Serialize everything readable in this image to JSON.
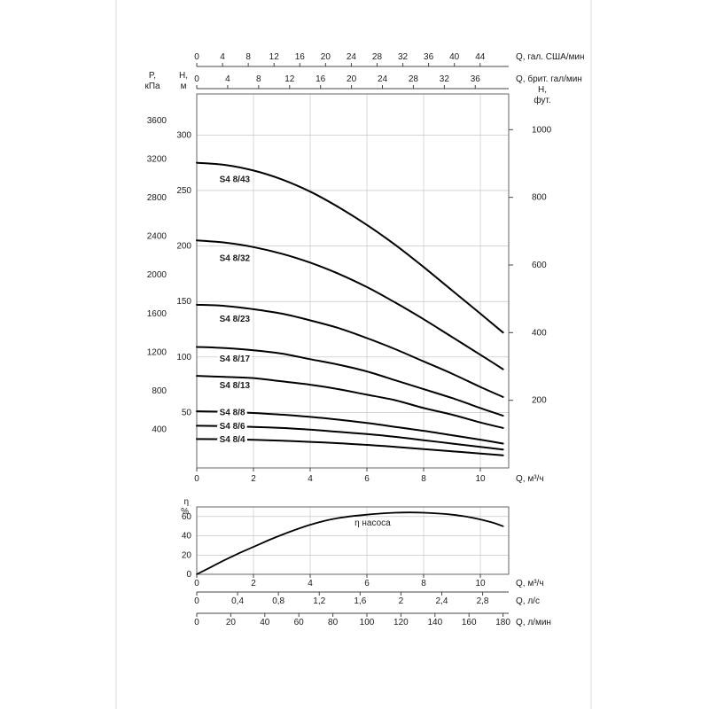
{
  "labels": {
    "p_kpa_1": "P,",
    "p_kpa_2": "кПа",
    "h_m_1": "H,",
    "h_m_2": "м",
    "h_ft_1": "H,",
    "h_ft_2": "фут.",
    "q_usgal": "Q, гал. США/мин",
    "q_ukgal": "Q, брит. гал/мин",
    "q_m3h": "Q, м³/ч",
    "q_ls": "Q, л/с",
    "q_lmin": "Q, л/мин",
    "eta_1": "η",
    "eta_2": "%",
    "eta_curve": "η насоса"
  },
  "chart_data": [
    {
      "type": "line",
      "name": "pump-head-curves",
      "x_axis": {
        "unit": "м³/ч",
        "min": 0,
        "max": 11,
        "ticks": [
          0,
          2,
          4,
          6,
          8,
          10
        ]
      },
      "y_axis_m": {
        "unit": "м",
        "min": 0,
        "max": 337,
        "ticks": [
          50,
          100,
          150,
          200,
          250,
          300
        ]
      },
      "y_axis_kpa": {
        "unit": "кПа",
        "ticks": [
          400,
          800,
          1200,
          1600,
          2000,
          2400,
          2800,
          3200,
          3600
        ]
      },
      "y_axis_ft": {
        "unit": "фут.",
        "ticks": [
          200,
          400,
          600,
          800,
          1000
        ],
        "m_per_ft": 0.3048
      },
      "top_axis_usgal": {
        "unit": "гал. США/мин",
        "ticks": [
          0,
          4,
          8,
          12,
          16,
          20,
          24,
          28,
          32,
          36,
          40,
          44
        ],
        "m3h_per_unit": 0.2271
      },
      "top_axis_ukgal": {
        "unit": "брит. гал/мин",
        "ticks": [
          0,
          4,
          8,
          12,
          16,
          20,
          24,
          28,
          32,
          36
        ],
        "m3h_per_unit": 0.2728
      },
      "series": [
        {
          "name": "S4 8/43",
          "label_dy": 16,
          "points": [
            [
              0,
              275
            ],
            [
              1,
              273
            ],
            [
              2,
              268
            ],
            [
              3,
              260
            ],
            [
              4,
              249
            ],
            [
              5,
              235
            ],
            [
              6,
              219
            ],
            [
              7,
              201
            ],
            [
              8,
              181
            ],
            [
              9,
              160
            ],
            [
              10,
              139
            ],
            [
              10.8,
              122
            ]
          ]
        },
        {
          "name": "S4 8/32",
          "label_dy": 18,
          "points": [
            [
              0,
              205
            ],
            [
              1,
              203
            ],
            [
              2,
              199
            ],
            [
              3,
              193
            ],
            [
              4,
              185
            ],
            [
              5,
              175
            ],
            [
              6,
              163
            ],
            [
              7,
              149
            ],
            [
              8,
              134
            ],
            [
              9,
              118
            ],
            [
              10,
              102
            ],
            [
              10.8,
              89
            ]
          ]
        },
        {
          "name": "S4 8/23",
          "label_dy": 16,
          "points": [
            [
              0,
              147
            ],
            [
              1,
              146
            ],
            [
              2,
              143
            ],
            [
              3,
              139
            ],
            [
              4,
              133
            ],
            [
              5,
              126
            ],
            [
              6,
              117
            ],
            [
              7,
              107
            ],
            [
              8,
              96
            ],
            [
              9,
              85
            ],
            [
              10,
              73
            ],
            [
              10.8,
              64
            ]
          ]
        },
        {
          "name": "S4 8/17",
          "label_dy": 14,
          "points": [
            [
              0,
              109
            ],
            [
              1,
              108
            ],
            [
              2,
              106
            ],
            [
              3,
              103
            ],
            [
              4,
              98
            ],
            [
              5,
              93
            ],
            [
              6,
              87
            ],
            [
              7,
              79
            ],
            [
              8,
              71
            ],
            [
              9,
              63
            ],
            [
              10,
              54
            ],
            [
              10.8,
              47
            ]
          ]
        },
        {
          "name": "S4 8/13",
          "label_dy": 12,
          "points": [
            [
              0,
              83
            ],
            [
              1,
              82
            ],
            [
              2,
              81
            ],
            [
              3,
              78
            ],
            [
              4,
              75
            ],
            [
              5,
              71
            ],
            [
              6,
              66
            ],
            [
              7,
              61
            ],
            [
              8,
              54
            ],
            [
              9,
              48
            ],
            [
              10,
              41
            ],
            [
              10.8,
              36
            ]
          ]
        },
        {
          "name": "S4 8/8",
          "label_dy": 3,
          "points": [
            [
              0,
              51
            ],
            [
              1,
              50.5
            ],
            [
              2,
              49.5
            ],
            [
              3,
              48
            ],
            [
              4,
              46
            ],
            [
              5,
              43.5
            ],
            [
              6,
              40.5
            ],
            [
              7,
              37
            ],
            [
              8,
              33.5
            ],
            [
              9,
              29.5
            ],
            [
              10,
              25.5
            ],
            [
              10.8,
              22
            ]
          ]
        },
        {
          "name": "S4 8/6",
          "label_dy": 3,
          "points": [
            [
              0,
              38
            ],
            [
              1,
              37.7
            ],
            [
              2,
              37
            ],
            [
              3,
              36
            ],
            [
              4,
              34.5
            ],
            [
              5,
              32.5
            ],
            [
              6,
              30.5
            ],
            [
              7,
              28
            ],
            [
              8,
              25
            ],
            [
              9,
              22
            ],
            [
              10,
              19
            ],
            [
              10.8,
              16.5
            ]
          ]
        },
        {
          "name": "S4 8/4",
          "label_dy": 3,
          "points": [
            [
              0,
              26
            ],
            [
              1,
              25.8
            ],
            [
              2,
              25.3
            ],
            [
              3,
              24.5
            ],
            [
              4,
              23.5
            ],
            [
              5,
              22.3
            ],
            [
              6,
              20.8
            ],
            [
              7,
              19
            ],
            [
              8,
              17
            ],
            [
              9,
              15
            ],
            [
              10,
              13
            ],
            [
              10.8,
              11.3
            ]
          ]
        }
      ]
    },
    {
      "type": "line",
      "name": "pump-efficiency",
      "x_axis": {
        "unit": "м³/ч",
        "min": 0,
        "max": 11,
        "ticks": [
          0,
          2,
          4,
          6,
          8,
          10
        ]
      },
      "y_axis": {
        "unit": "%",
        "min": 0,
        "max": 70,
        "ticks": [
          0,
          20,
          40,
          60
        ]
      },
      "bottom_axis_ls": {
        "unit": "л/с",
        "tick_values": [
          0,
          0.4,
          0.8,
          1.2,
          1.6,
          2,
          2.4,
          2.8
        ],
        "tick_labels": [
          "0",
          "0,4",
          "0,8",
          "1,2",
          "1,6",
          "2",
          "2,4",
          "2,8"
        ],
        "m3h_per_unit": 3.6
      },
      "bottom_axis_lmin": {
        "unit": "л/мин",
        "ticks": [
          0,
          20,
          40,
          60,
          80,
          100,
          120,
          140,
          160,
          180
        ],
        "m3h_per_unit": 0.06
      },
      "series": [
        {
          "name": "η насоса",
          "points": [
            [
              0,
              0
            ],
            [
              0.5,
              7.5
            ],
            [
              1,
              15
            ],
            [
              1.5,
              22
            ],
            [
              2,
              28.5
            ],
            [
              2.5,
              35
            ],
            [
              3,
              41
            ],
            [
              3.5,
              46.5
            ],
            [
              4,
              51.5
            ],
            [
              4.5,
              55.5
            ],
            [
              5,
              58.5
            ],
            [
              5.5,
              60.5
            ],
            [
              6,
              62
            ],
            [
              6.5,
              63.2
            ],
            [
              7,
              64
            ],
            [
              7.5,
              64.3
            ],
            [
              8,
              64
            ],
            [
              8.5,
              63.2
            ],
            [
              9,
              62
            ],
            [
              9.5,
              60
            ],
            [
              10,
              57
            ],
            [
              10.4,
              54
            ],
            [
              10.8,
              50
            ]
          ]
        }
      ]
    }
  ]
}
